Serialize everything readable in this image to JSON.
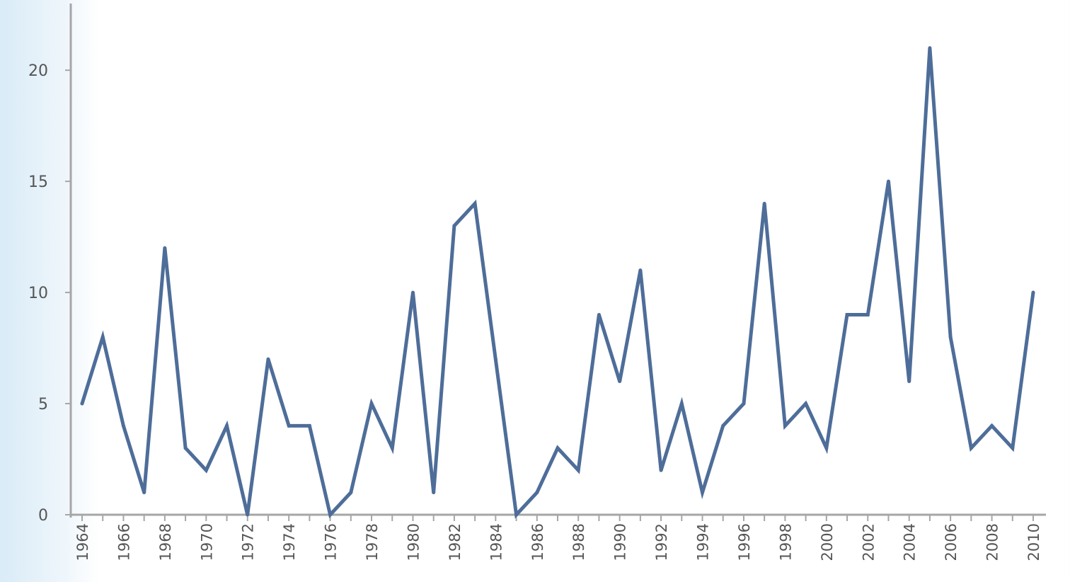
{
  "chart_data": {
    "type": "line",
    "title": "",
    "xlabel": "",
    "ylabel": "",
    "x": [
      1964,
      1965,
      1966,
      1967,
      1968,
      1969,
      1970,
      1971,
      1972,
      1973,
      1974,
      1975,
      1976,
      1977,
      1978,
      1979,
      1980,
      1981,
      1982,
      1983,
      1984,
      1985,
      1986,
      1987,
      1988,
      1989,
      1990,
      1991,
      1992,
      1993,
      1994,
      1995,
      1996,
      1997,
      1998,
      1999,
      2000,
      2001,
      2002,
      2003,
      2004,
      2005,
      2006,
      2007,
      2008,
      2009,
      2010
    ],
    "values": [
      5,
      8,
      4,
      1,
      12,
      3,
      2,
      4,
      0,
      7,
      4,
      4,
      0,
      1,
      5,
      3,
      10,
      1,
      13,
      14,
      7,
      0,
      1,
      3,
      2,
      9,
      6,
      11,
      2,
      5,
      1,
      4,
      5,
      14,
      4,
      5,
      3,
      9,
      9,
      15,
      6,
      21,
      8,
      3,
      4,
      3,
      10
    ],
    "x_tick_labels": [
      "1964",
      "1966",
      "1968",
      "1970",
      "1972",
      "1974",
      "1976",
      "1978",
      "1980",
      "1982",
      "1984",
      "1986",
      "1988",
      "1990",
      "1992",
      "1994",
      "1996",
      "1998",
      "2000",
      "2002",
      "2004",
      "2006",
      "2008",
      "2010"
    ],
    "y_tick_labels": [
      "0",
      "5",
      "10",
      "15",
      "20"
    ],
    "ylim": [
      0,
      23
    ],
    "grid": false,
    "legend": "none",
    "line_color": "#4e6d99",
    "axis_color": "#a6a6a6"
  }
}
